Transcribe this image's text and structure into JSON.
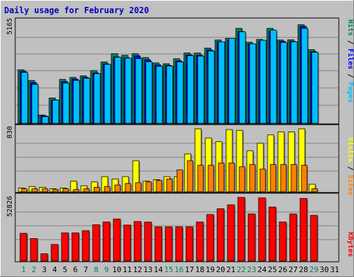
{
  "colors": {
    "background": "#c0c0c0",
    "title": "#0000c0",
    "hits": "#00805c",
    "files": "#0000ff",
    "pages": "#00c0ff",
    "visits": "#ffff00",
    "sites": "#ff8000",
    "kbytes": "#ff0000",
    "weekend_label": "#00805c",
    "weekday_label": "#000000"
  },
  "chart_data": {
    "type": "bar",
    "title": "Daily usage for February 2020",
    "days": [
      "1",
      "2",
      "3",
      "4",
      "5",
      "6",
      "7",
      "8",
      "9",
      "10",
      "11",
      "12",
      "13",
      "14",
      "15",
      "16",
      "17",
      "18",
      "19",
      "20",
      "21",
      "22",
      "23",
      "24",
      "25",
      "26",
      "27",
      "28",
      "29",
      "30",
      "31"
    ],
    "weekend_days": [
      "1",
      "2",
      "8",
      "9",
      "15",
      "16",
      "22",
      "23",
      "29"
    ],
    "panels": [
      {
        "name": "hits-files-pages",
        "max_label": "5165",
        "axis_max": 5165,
        "legend": [
          "Pages",
          "Files",
          "Hits"
        ],
        "series": [
          {
            "name": "Hits",
            "values": [
              2660,
              2130,
              410,
              1260,
              2180,
              2280,
              2360,
              2620,
              3050,
              3460,
              3380,
              3460,
              3270,
              3000,
              2960,
              3210,
              3500,
              3490,
              3740,
              4140,
              4220,
              4720,
              4030,
              4170,
              4720,
              4140,
              4150,
              4900,
              3660,
              0,
              0
            ]
          },
          {
            "name": "Files",
            "values": [
              2580,
              2020,
              370,
              1160,
              2070,
              2200,
              2280,
              2500,
              2950,
              3300,
              3250,
              3350,
              3150,
              2900,
              2880,
              3100,
              3400,
              3380,
              3640,
              4050,
              4130,
              4560,
              3950,
              4070,
              4570,
              4070,
              4070,
              4820,
              3560,
              0,
              0
            ]
          },
          {
            "name": "Pages",
            "values": [
              2530,
              1930,
              330,
              1150,
              2000,
              2130,
              2240,
              2470,
              2930,
              3280,
              3240,
              3210,
              3060,
              2830,
              2850,
              3050,
              3360,
              3340,
              3590,
              4050,
              4220,
              4550,
              3950,
              4130,
              4630,
              4020,
              4050,
              4720,
              3530,
              0,
              0
            ]
          }
        ]
      },
      {
        "name": "visits-sites",
        "max_label": "830",
        "axis_max": 830,
        "legend": [
          "Sites",
          "Visits"
        ],
        "series": [
          {
            "name": "Visits",
            "values": [
              50,
              70,
              60,
              40,
              50,
              140,
              80,
              130,
              200,
              170,
              200,
              410,
              140,
              160,
              200,
              200,
              500,
              830,
              710,
              660,
              820,
              810,
              540,
              640,
              750,
              790,
              790,
              830,
              100,
              0,
              0
            ]
          },
          {
            "name": "Sites",
            "values": [
              40,
              40,
              40,
              30,
              40,
              30,
              40,
              60,
              70,
              90,
              110,
              120,
              130,
              150,
              170,
              290,
              410,
              350,
              350,
              380,
              380,
              330,
              360,
              300,
              360,
              360,
              360,
              350,
              40,
              0,
              0
            ]
          }
        ]
      },
      {
        "name": "kbytes",
        "max_label": "52826",
        "axis_max": 52826,
        "legend": [
          "KBytes"
        ],
        "series": [
          {
            "name": "KBytes",
            "values": [
              23000,
              18700,
              6100,
              13800,
              23400,
              23400,
              25200,
              30100,
              32400,
              34900,
              29900,
              32800,
              32300,
              28400,
              28400,
              28400,
              28400,
              32400,
              38600,
              43400,
              46600,
              52800,
              39100,
              52400,
              44800,
              32400,
              39100,
              51900,
              37900,
              0,
              0
            ]
          }
        ]
      }
    ]
  }
}
